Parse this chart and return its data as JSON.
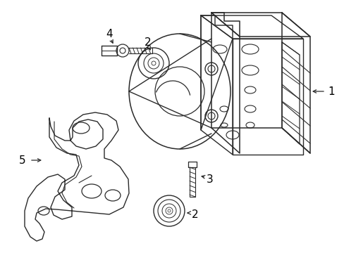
{
  "background_color": "#ffffff",
  "line_color": "#2a2a2a",
  "label_color": "#000000",
  "figsize": [
    4.89,
    3.6
  ],
  "dpi": 100,
  "lw": 1.0
}
